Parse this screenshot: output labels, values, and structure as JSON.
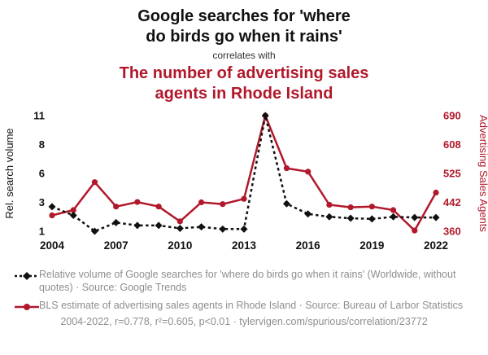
{
  "header": {
    "title_line1": "Google searches for 'where",
    "title_line2": "do birds go when it rains'",
    "connector": "correlates with",
    "subtitle_line1": "The number of advertising sales",
    "subtitle_line2": "agents in Rhode Island"
  },
  "colors": {
    "accent_red": "#b2182b",
    "series_black": "#111111",
    "muted_gray": "#8e8e8e"
  },
  "chart_data": {
    "type": "line",
    "x": [
      2004,
      2005,
      2006,
      2007,
      2008,
      2009,
      2010,
      2011,
      2012,
      2013,
      2014,
      2015,
      2016,
      2017,
      2018,
      2019,
      2020,
      2021,
      2022
    ],
    "x_tick_labels": [
      2004,
      2007,
      2010,
      2013,
      2016,
      2019,
      2022
    ],
    "left_axis": {
      "label": "Rel. search volume",
      "ticks": [
        1,
        3,
        6,
        8,
        11
      ],
      "range": [
        1,
        11
      ]
    },
    "right_axis": {
      "label": "Advertising Sales Agents",
      "ticks": [
        360,
        442,
        525,
        608,
        690
      ],
      "range": [
        360,
        690
      ]
    },
    "series": [
      {
        "name": "google-search-volume",
        "axis": "left",
        "color": "#111111",
        "style": "dashed",
        "marker": "diamond",
        "values": [
          2.7,
          2.1,
          1.0,
          1.6,
          1.4,
          1.4,
          1.2,
          1.3,
          1.15,
          1.15,
          11,
          2.9,
          2.2,
          2.0,
          1.9,
          1.85,
          2.0,
          1.95,
          1.95
        ]
      },
      {
        "name": "advertising-sales-agents",
        "axis": "right",
        "color": "#b2182b",
        "style": "solid",
        "marker": "circle",
        "values": [
          405,
          420,
          500,
          430,
          443,
          430,
          388,
          442,
          437,
          452,
          690,
          540,
          530,
          435,
          428,
          430,
          420,
          362,
          470
        ]
      }
    ],
    "grid": false,
    "legend_position": "bottom"
  },
  "legend": [
    {
      "marker": "diamond-dashed",
      "text": "Relative volume of Google searches for 'where do birds go when it rains' (Worldwide, without quotes) · Source: Google Trends"
    },
    {
      "marker": "circle-solid",
      "text": "BLS estimate of advertising sales agents in Rhode Island · Source: Bureau of Larbor Statistics"
    }
  ],
  "footer": {
    "text": "2004-2022, r=0.778, r²=0.605, p<0.01 · tylervigen.com/spurious/correlation/23772"
  }
}
